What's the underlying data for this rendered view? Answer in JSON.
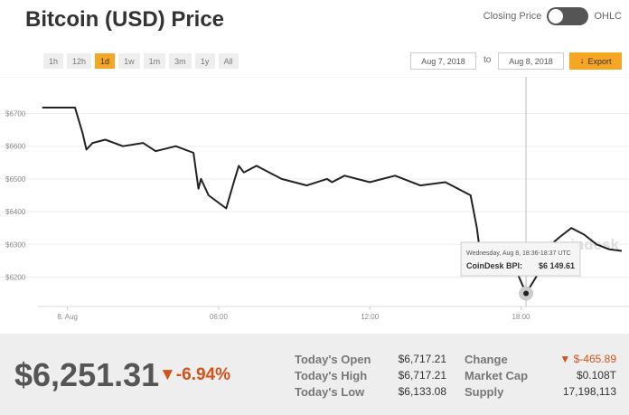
{
  "header": {
    "title": "Bitcoin (USD) Price",
    "toggle_left": "Closing Price",
    "toggle_right": "OHLC"
  },
  "range": {
    "buttons": [
      "1h",
      "12h",
      "1d",
      "1w",
      "1m",
      "3m",
      "1y",
      "All"
    ],
    "active": "1d"
  },
  "dates": {
    "from": "Aug 7, 2018",
    "to_label": "to",
    "to": "Aug 8, 2018",
    "export_label": "Export"
  },
  "tooltip": {
    "date": "Wednesday, Aug 8, 18:36-18:37 UTC",
    "label": "CoinDesk BPI:",
    "value": "$6 149.61"
  },
  "watermark": "coindesk",
  "stats": {
    "price": "$6,251.31",
    "change_pct": "▼-6.94%",
    "rows": [
      {
        "label": "Today's Open",
        "value": "$6,717.21"
      },
      {
        "label": "Today's High",
        "value": "$6,717.21"
      },
      {
        "label": "Today's Low",
        "value": "$6,133.08"
      }
    ],
    "rows2": [
      {
        "label": "Change",
        "value": "▼ $-465.89"
      },
      {
        "label": "Market Cap",
        "value": "$0.108T"
      },
      {
        "label": "Supply",
        "value": "17,198,113"
      }
    ]
  },
  "colors": {
    "accent": "#f5a623",
    "line": "#222222",
    "negative": "#d0541a"
  },
  "chart_data": {
    "type": "line",
    "xticks": [
      "8. Aug",
      "06:00",
      "12:00",
      "18:00"
    ],
    "yticks": [
      "$6200",
      "$6300",
      "$6400",
      "$6500",
      "$6600",
      "$6700"
    ],
    "ylim": [
      6110,
      6790
    ],
    "xlim": [
      -1.1,
      22.0
    ],
    "x": [
      -1.0,
      0.3,
      0.6,
      0.75,
      1.0,
      1.5,
      2.2,
      3.0,
      3.5,
      4.3,
      5.0,
      5.2,
      5.3,
      5.6,
      6.3,
      6.6,
      6.8,
      7.0,
      7.5,
      8.5,
      9.5,
      10.3,
      10.5,
      11.0,
      12.0,
      13.0,
      14.0,
      15.0,
      15.5,
      16.0,
      16.25,
      16.4,
      16.6,
      16.9,
      17.2,
      17.7,
      18.2,
      18.6,
      19.0,
      19.2,
      19.5,
      20.0,
      20.5,
      21.0,
      21.5,
      22.0
    ],
    "y": [
      6718,
      6718,
      6640,
      6590,
      6610,
      6620,
      6600,
      6610,
      6585,
      6600,
      6580,
      6470,
      6500,
      6450,
      6410,
      6490,
      6540,
      6520,
      6540,
      6500,
      6480,
      6500,
      6490,
      6510,
      6490,
      6510,
      6480,
      6490,
      6470,
      6450,
      6350,
      6260,
      6265,
      6250,
      6260,
      6240,
      6150,
      6200,
      6270,
      6300,
      6320,
      6350,
      6330,
      6300,
      6285,
      6280
    ],
    "tooltip_index": 36
  }
}
